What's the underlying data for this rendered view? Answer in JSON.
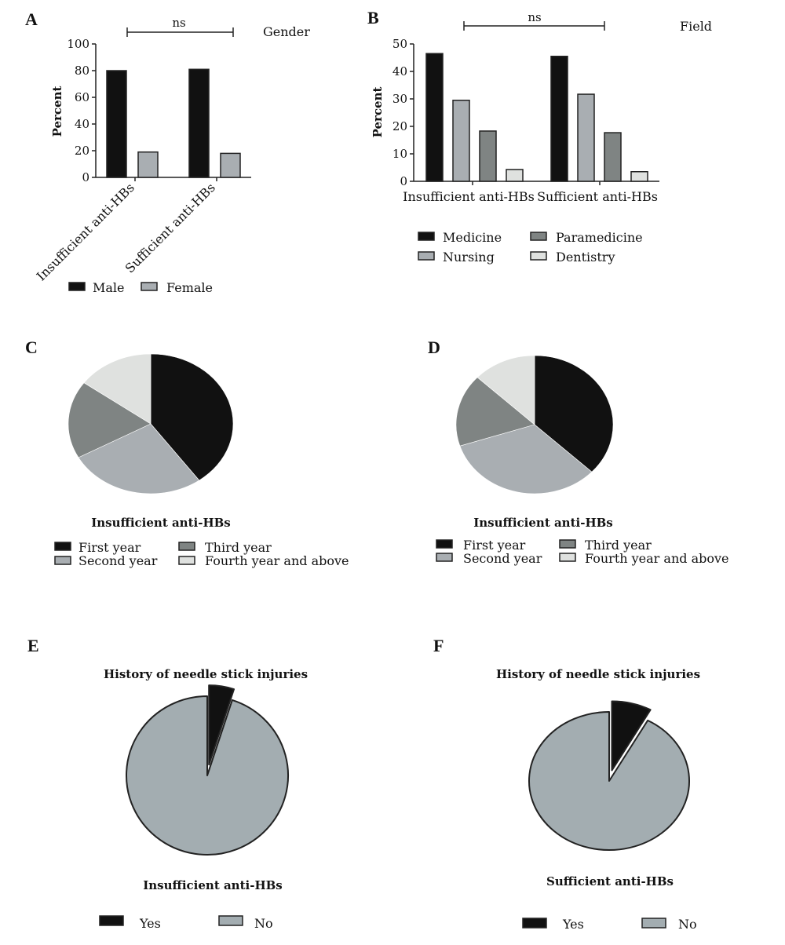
{
  "colors": {
    "black": "#111111",
    "gray": "#a9aeb2",
    "darkgray": "#7f8483",
    "lightgray": "#dfe1df",
    "pie_gray": "#a3adb1",
    "stroke": "#222222"
  },
  "chart_data": [
    {
      "panel": "A",
      "type": "bar",
      "categories": [
        "Insufficient anti-HBs",
        "Sufficient anti-HBs"
      ],
      "series": [
        {
          "name": "Male",
          "values": [
            80,
            81
          ],
          "color": "#111111"
        },
        {
          "name": "Female",
          "values": [
            19,
            18
          ],
          "color": "#a9aeb2"
        }
      ],
      "ylabel": "Percent",
      "ylim": [
        0,
        100
      ],
      "yticks": [
        0,
        20,
        40,
        60,
        80,
        100
      ],
      "legend_title": "Gender",
      "annotation": "ns",
      "legend_position": "bottom"
    },
    {
      "panel": "B",
      "type": "bar",
      "categories": [
        "Insufficient anti-HBs",
        "Sufficient anti-HBs"
      ],
      "series": [
        {
          "name": "Medicine",
          "values": [
            46.5,
            45.5
          ],
          "color": "#111111"
        },
        {
          "name": "Nursing",
          "values": [
            29.5,
            31.7
          ],
          "color": "#a9aeb2"
        },
        {
          "name": "Paramedicine",
          "values": [
            18.3,
            17.7
          ],
          "color": "#7f8483"
        },
        {
          "name": "Dentistry",
          "values": [
            4.3,
            3.5
          ],
          "color": "#dfe1df"
        }
      ],
      "ylabel": "Percent",
      "ylim": [
        0,
        50
      ],
      "yticks": [
        0,
        10,
        20,
        30,
        40,
        50
      ],
      "legend_title": "Field",
      "annotation": "ns",
      "legend_position": "bottom"
    },
    {
      "panel": "C",
      "type": "pie",
      "title": "Insufficient anti-HBs",
      "labels": [
        "First year",
        "Second year",
        "Third year",
        "Fourth year and above"
      ],
      "values": [
        40,
        27,
        18,
        15
      ],
      "colors": [
        "#111111",
        "#a9aeb2",
        "#7f8483",
        "#dfe1df"
      ]
    },
    {
      "panel": "D",
      "type": "pie",
      "title": "Insufficient anti-HBs",
      "labels": [
        "First year",
        "Second year",
        "Third year",
        "Fourth year and above"
      ],
      "values": [
        37,
        33,
        17,
        13
      ],
      "colors": [
        "#111111",
        "#a9aeb2",
        "#7f8483",
        "#dfe1df"
      ]
    },
    {
      "panel": "E",
      "type": "pie",
      "title": "History of needle stick injuries",
      "subtitle": "Insufficient anti-HBs",
      "labels": [
        "Yes",
        "No"
      ],
      "values": [
        5,
        95
      ],
      "colors": [
        "#111111",
        "#a3adb1"
      ],
      "exploded": "Yes"
    },
    {
      "panel": "F",
      "type": "pie",
      "title": "History of needle stick injuries",
      "subtitle": "Sufficient anti-HBs",
      "labels": [
        "Yes",
        "No"
      ],
      "values": [
        8,
        92
      ],
      "colors": [
        "#111111",
        "#a3adb1"
      ],
      "exploded": "Yes"
    }
  ]
}
